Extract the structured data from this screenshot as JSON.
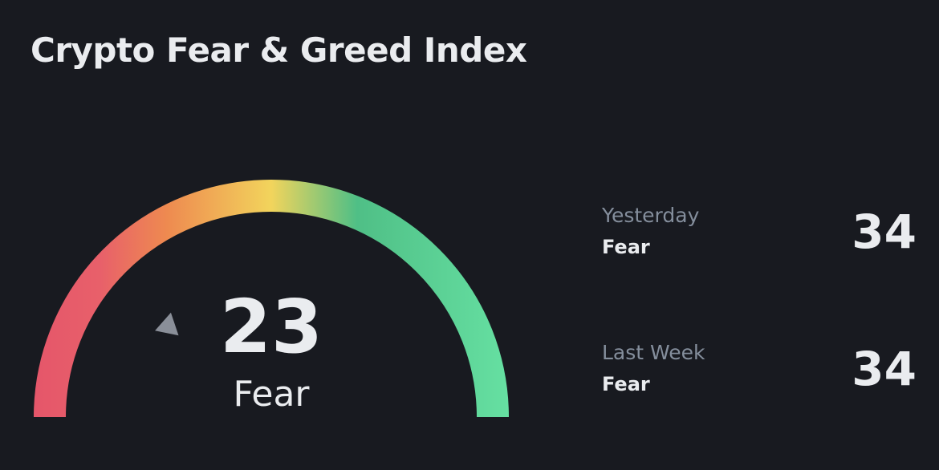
{
  "title": "Crypto Fear & Greed Index",
  "gauge": {
    "value": "23",
    "level": 23,
    "min": 0,
    "max": 100,
    "label": "Fear",
    "colors": [
      "#E5566A",
      "#EE8A50",
      "#F2D45C",
      "#4FBF86",
      "#66E0A2"
    ]
  },
  "history": [
    {
      "period": "Yesterday",
      "sentiment": "Fear",
      "value": "34"
    },
    {
      "period": "Last Week",
      "sentiment": "Fear",
      "value": "34"
    }
  ]
}
